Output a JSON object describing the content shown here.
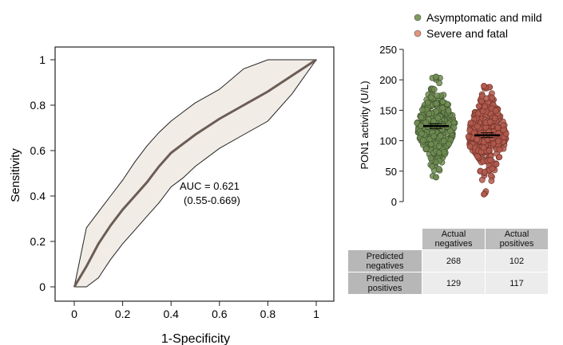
{
  "chart_data": [
    {
      "type": "line",
      "xlabel": "1-Specificity",
      "ylabel": "Sensitivity",
      "xlim": [
        0,
        1
      ],
      "ylim": [
        0,
        1
      ],
      "xticks": [
        "0",
        "0.2",
        "0.4",
        "0.6",
        "0.8",
        "1"
      ],
      "yticks": [
        "0",
        "0.2",
        "0.4",
        "0.6",
        "0.8",
        "1"
      ],
      "annotation": {
        "line1": "AUC = 0.621",
        "line2": "(0.55-0.669)"
      },
      "series": [
        {
          "x": [
            0,
            0.05,
            0.1,
            0.15,
            0.2,
            0.25,
            0.3,
            0.35,
            0.4,
            0.45,
            0.5,
            0.6,
            0.7,
            0.8,
            0.9,
            1.0
          ],
          "y": [
            0,
            0.09,
            0.19,
            0.27,
            0.34,
            0.4,
            0.46,
            0.53,
            0.59,
            0.63,
            0.67,
            0.74,
            0.8,
            0.86,
            0.93,
            1.0
          ]
        }
      ],
      "ci_upper": {
        "x": [
          0,
          0.05,
          0.1,
          0.15,
          0.2,
          0.25,
          0.3,
          0.35,
          0.4,
          0.45,
          0.5,
          0.6,
          0.7,
          0.8,
          0.9,
          1.0
        ],
        "y": [
          0,
          0.26,
          0.33,
          0.4,
          0.47,
          0.55,
          0.62,
          0.68,
          0.73,
          0.77,
          0.81,
          0.87,
          0.96,
          1.0,
          1.0,
          1.0
        ]
      },
      "ci_lower": {
        "x": [
          0,
          0.05,
          0.1,
          0.15,
          0.2,
          0.25,
          0.3,
          0.35,
          0.4,
          0.45,
          0.5,
          0.6,
          0.7,
          0.8,
          0.9,
          1.0
        ],
        "y": [
          0,
          0,
          0.04,
          0.12,
          0.19,
          0.25,
          0.31,
          0.37,
          0.44,
          0.48,
          0.53,
          0.61,
          0.67,
          0.73,
          0.85,
          1.0
        ]
      },
      "colors": {
        "line": "#6b5d55",
        "band": "#f1ece5",
        "band_edge": "#222222"
      }
    },
    {
      "type": "scatter",
      "ylabel": "PON1 activity (U/L)",
      "ylim": [
        0,
        250
      ],
      "yticks": [
        "0",
        "50",
        "100",
        "150",
        "200",
        "250"
      ],
      "legend": [
        {
          "name": "Asymptomatic and mild",
          "color": "#7e9a5e"
        },
        {
          "name": "Severe and fatal",
          "color": "#e2957e"
        }
      ],
      "groups": [
        {
          "name": "Asymptomatic and mild",
          "mean": 124,
          "min": 40,
          "max": 205,
          "fill": "#6f8c52",
          "edge": "#3d4d2c"
        },
        {
          "name": "Severe and fatal",
          "mean": 109,
          "min": 12,
          "max": 190,
          "fill": "#b25a4e",
          "edge": "#6e2f27"
        }
      ]
    }
  ],
  "table": {
    "col_headers": [
      {
        "line1": "Actual",
        "line2": "negatives"
      },
      {
        "line1": "Actual",
        "line2": "positives"
      }
    ],
    "rows": [
      {
        "line1": "Predicted",
        "line2": "negatives",
        "values": [
          "268",
          "102"
        ]
      },
      {
        "line1": "Predicted",
        "line2": "positives",
        "values": [
          "129",
          "117"
        ]
      }
    ]
  }
}
